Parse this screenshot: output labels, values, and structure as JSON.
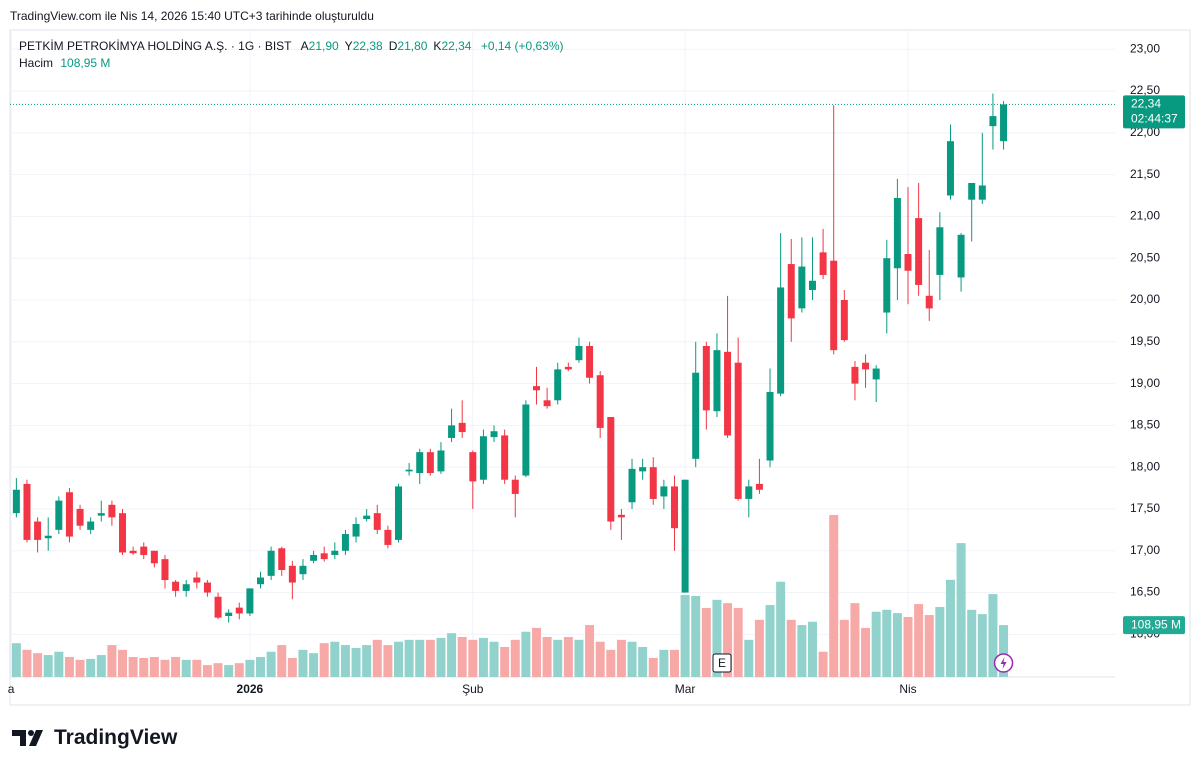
{
  "caption": "TradingView.com ile Nis 14, 2026 15:40 UTC+3 tarihinde oluşturuldu",
  "brand": "TradingView",
  "chart_data": {
    "type": "candlestick",
    "title": "PETKİM PETROKİMYA HOLDİNG A.Ş. · 1G · BIST",
    "ohlc_legend": [
      {
        "key": "A",
        "text": "21,90"
      },
      {
        "key": "Y",
        "text": "22,38"
      },
      {
        "key": "D",
        "text": "21,80"
      },
      {
        "key": "K",
        "text": "22,34"
      }
    ],
    "change_label": "+0,14 (+0,63%)",
    "volume_legend": {
      "key": "Hacim",
      "text": "108,95 M"
    },
    "last_price_label": "22,34",
    "countdown": "02:44:37",
    "event_marker": "E",
    "up_color": "#089981",
    "down_color": "#f23645",
    "volume_up_color": "#92d2cc",
    "volume_down_color": "#f7a9a7",
    "grid": true,
    "xlim": [
      -0.6,
      103.5
    ],
    "ylim": [
      15.49,
      23.23
    ],
    "xticks": [
      {
        "value": -0.5,
        "label": "a"
      },
      {
        "value": 22,
        "label": "2026"
      },
      {
        "value": 43,
        "label": "Şub"
      },
      {
        "value": 63,
        "label": "Mar"
      },
      {
        "value": 84,
        "label": "Nis"
      }
    ],
    "yticks": [
      {
        "value": 16,
        "label": "16,00"
      },
      {
        "value": 16.5,
        "label": "16,50"
      },
      {
        "value": 17,
        "label": "17,00"
      },
      {
        "value": 17.5,
        "label": "17,50"
      },
      {
        "value": 18,
        "label": "18,00"
      },
      {
        "value": 18.5,
        "label": "18,50"
      },
      {
        "value": 19,
        "label": "19,00"
      },
      {
        "value": 19.5,
        "label": "19,50"
      },
      {
        "value": 20,
        "label": "20,00"
      },
      {
        "value": 20.5,
        "label": "20,50"
      },
      {
        "value": 21,
        "label": "21,00"
      },
      {
        "value": 21.5,
        "label": "21,50"
      },
      {
        "value": 22,
        "label": "22,00"
      },
      {
        "value": 22.5,
        "label": "22,50"
      },
      {
        "value": 23,
        "label": "23,00"
      }
    ],
    "open": [
      17.45,
      17.8,
      17.35,
      17.15,
      17.25,
      17.7,
      17.5,
      17.25,
      17.42,
      17.55,
      17.45,
      17.0,
      17.05,
      17.0,
      16.9,
      16.63,
      16.52,
      16.68,
      16.62,
      16.45,
      16.22,
      16.32,
      16.25,
      16.6,
      16.7,
      17.03,
      16.82,
      16.72,
      16.88,
      16.97,
      16.95,
      17.0,
      17.17,
      17.38,
      17.45,
      17.25,
      17.13,
      17.95,
      17.93,
      18.18,
      17.95,
      18.35,
      18.53,
      18.18,
      17.85,
      18.36,
      18.38,
      17.85,
      17.9,
      18.97,
      18.8,
      18.8,
      19.2,
      19.28,
      19.45,
      19.1,
      18.6,
      17.43,
      17.58,
      17.95,
      18.0,
      17.65,
      17.77,
      16.5,
      18.1,
      19.45,
      18.67,
      19.38,
      19.25,
      17.62,
      17.8,
      18.08,
      18.88,
      20.43,
      19.9,
      20.12,
      20.57,
      20.47,
      20.0,
      19.2,
      19.25,
      19.05,
      19.85,
      20.38,
      20.55,
      20.98,
      20.05,
      20.3,
      21.25,
      20.27,
      21.2,
      21.2,
      22.08,
      21.9
    ],
    "high": [
      17.87,
      17.85,
      17.4,
      17.4,
      17.65,
      17.75,
      17.55,
      17.4,
      17.6,
      17.6,
      17.5,
      17.05,
      17.1,
      17.0,
      16.95,
      16.65,
      16.65,
      16.75,
      16.65,
      16.5,
      16.3,
      16.38,
      16.55,
      16.75,
      17.05,
      17.05,
      16.88,
      16.9,
      17.0,
      17.05,
      17.1,
      17.25,
      17.4,
      17.5,
      17.55,
      17.3,
      17.8,
      18.05,
      18.22,
      18.22,
      18.3,
      18.7,
      18.8,
      18.2,
      18.45,
      18.5,
      18.45,
      17.9,
      18.8,
      19.2,
      18.95,
      19.25,
      19.25,
      19.55,
      19.5,
      19.15,
      18.6,
      17.5,
      18.1,
      18.1,
      18.12,
      17.85,
      17.9,
      17.85,
      19.5,
      19.5,
      19.6,
      20.05,
      19.55,
      17.85,
      18.1,
      19.18,
      20.8,
      20.73,
      20.75,
      20.75,
      20.85,
      22.33,
      20.12,
      19.27,
      19.35,
      19.22,
      20.72,
      21.45,
      21.35,
      21.4,
      20.6,
      21.05,
      22.1,
      20.8,
      21.4,
      22.0,
      22.47,
      22.38
    ],
    "low": [
      17.4,
      17.1,
      16.98,
      17.0,
      17.2,
      17.1,
      17.25,
      17.2,
      17.35,
      17.3,
      16.95,
      16.95,
      16.9,
      16.8,
      16.55,
      16.45,
      16.45,
      16.55,
      16.45,
      16.18,
      16.14,
      16.18,
      16.22,
      16.55,
      16.65,
      16.7,
      16.42,
      16.65,
      16.85,
      16.87,
      16.9,
      16.95,
      17.1,
      17.35,
      17.2,
      17.03,
      17.1,
      17.9,
      17.8,
      17.9,
      17.92,
      18.3,
      18.35,
      17.5,
      17.8,
      18.3,
      17.8,
      17.4,
      17.88,
      18.75,
      18.7,
      18.75,
      19.15,
      19.25,
      19.0,
      18.35,
      17.25,
      17.13,
      17.5,
      17.85,
      17.55,
      17.5,
      17.0,
      16.5,
      18.0,
      18.45,
      18.6,
      18.35,
      17.6,
      17.4,
      17.68,
      18.0,
      18.85,
      19.5,
      19.85,
      20.0,
      20.25,
      19.35,
      19.5,
      18.8,
      18.95,
      18.78,
      19.6,
      20.0,
      19.95,
      20.05,
      19.75,
      20.0,
      21.2,
      20.1,
      20.7,
      21.15,
      21.8,
      21.8
    ],
    "close": [
      17.73,
      17.13,
      17.13,
      17.18,
      17.6,
      17.17,
      17.3,
      17.35,
      17.45,
      17.4,
      16.98,
      16.97,
      16.95,
      16.85,
      16.65,
      16.52,
      16.6,
      16.62,
      16.5,
      16.2,
      16.26,
      16.25,
      16.55,
      16.68,
      17.0,
      16.77,
      16.62,
      16.82,
      16.95,
      16.9,
      17.0,
      17.2,
      17.32,
      17.42,
      17.25,
      17.07,
      17.77,
      17.97,
      18.18,
      17.93,
      18.2,
      18.5,
      18.42,
      17.83,
      18.37,
      18.43,
      17.85,
      17.68,
      18.75,
      18.92,
      18.73,
      19.17,
      19.17,
      19.45,
      19.07,
      18.47,
      17.35,
      17.4,
      17.98,
      18.0,
      17.62,
      17.77,
      17.27,
      17.85,
      19.13,
      18.68,
      19.4,
      18.38,
      17.62,
      17.77,
      17.73,
      18.9,
      20.15,
      19.78,
      20.4,
      20.23,
      20.3,
      19.4,
      19.52,
      19.0,
      19.17,
      19.18,
      20.5,
      21.22,
      20.35,
      20.18,
      19.9,
      20.87,
      21.9,
      20.78,
      21.4,
      21.37,
      22.2,
      22.34
    ],
    "volume": [
      71,
      57,
      50,
      46,
      53,
      42,
      36,
      38,
      46,
      67,
      57,
      42,
      40,
      42,
      36,
      42,
      36,
      36,
      25,
      29,
      25,
      29,
      36,
      42,
      53,
      67,
      40,
      57,
      50,
      71,
      74,
      67,
      61,
      67,
      78,
      67,
      74,
      78,
      78,
      78,
      82,
      92,
      84,
      78,
      82,
      74,
      63,
      78,
      95,
      103,
      84,
      78,
      84,
      78,
      109,
      74,
      57,
      78,
      74,
      63,
      40,
      57,
      57,
      172,
      170,
      145,
      162,
      155,
      145,
      78,
      120,
      151,
      200,
      120,
      109,
      116,
      53,
      340,
      120,
      155,
      103,
      137,
      141,
      134,
      126,
      153,
      130,
      147,
      204,
      281,
      141,
      132,
      174,
      108.95
    ]
  }
}
